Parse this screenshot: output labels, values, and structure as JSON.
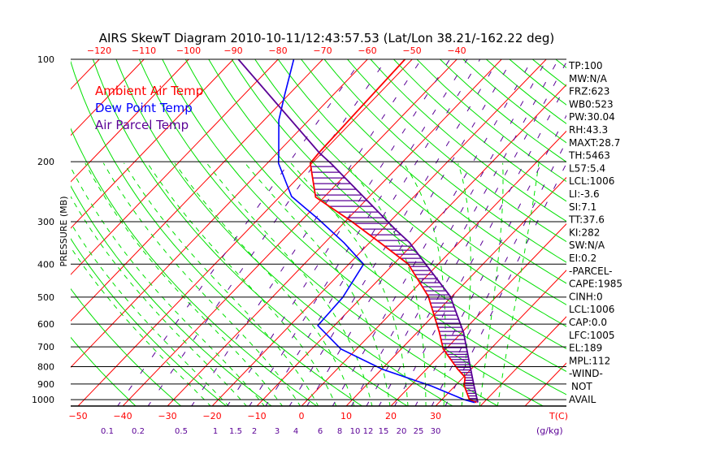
{
  "chart_data": {
    "type": "line",
    "title": "AIRS SkewT Diagram 2010-10-11/12:43:57.53 (Lat/Lon 38.21/-162.22 deg)",
    "ylabel": "PRESSURE (MB)",
    "xlabel": "T(C)",
    "mixing_ratio_unit": "(g/kg)",
    "y_scale": "log-pressure",
    "ylim": [
      1045,
      100
    ],
    "pressure_ticks": [
      100,
      200,
      300,
      400,
      500,
      600,
      700,
      800,
      900,
      1000
    ],
    "bottom_temp_ticks": [
      -50,
      -40,
      -30,
      -20,
      -10,
      0,
      10,
      20,
      30
    ],
    "top_temp_ticks": [
      -120,
      -110,
      -100,
      -90,
      -80,
      -70,
      -60,
      -50,
      -40
    ],
    "mixing_ratio_ticks": [
      "0.1",
      "0.2",
      "0.5",
      "1",
      "1.5",
      "2",
      "3",
      "4",
      "6",
      "8",
      "10",
      "12",
      "15",
      "20",
      "25",
      "30"
    ],
    "legend": [
      {
        "label": "Ambient Air Temp",
        "color": "#ff0000"
      },
      {
        "label": "Dew Point Temp",
        "color": "#0000ff"
      },
      {
        "label": "Air Parcel Temp",
        "color": "#5a0096"
      }
    ],
    "series": [
      {
        "name": "Ambient Air Temp",
        "color": "#ff0000",
        "points": [
          [
            100,
            -51.6
          ],
          [
            188,
            -50.7
          ],
          [
            202,
            -50.4
          ],
          [
            254,
            -41.9
          ],
          [
            300,
            -28.5
          ],
          [
            346,
            -17.6
          ],
          [
            400,
            -6.7
          ],
          [
            497,
            4.7
          ],
          [
            635,
            15.0
          ],
          [
            710,
            19.4
          ],
          [
            814,
            27.0
          ],
          [
            860,
            30.4
          ],
          [
            910,
            32.0
          ],
          [
            1000,
            36.2
          ],
          [
            1020,
            38.4
          ]
        ]
      },
      {
        "name": "Dew Point Temp",
        "color": "#0000ff",
        "points": [
          [
            100,
            -76.5
          ],
          [
            127,
            -70.9
          ],
          [
            151,
            -66.7
          ],
          [
            190,
            -59.4
          ],
          [
            202,
            -57.5
          ],
          [
            253,
            -47.4
          ],
          [
            295,
            -36.5
          ],
          [
            346,
            -25.7
          ],
          [
            400,
            -16.7
          ],
          [
            501,
            -14.2
          ],
          [
            606,
            -13.7
          ],
          [
            710,
            -3.5
          ],
          [
            814,
            10.1
          ],
          [
            912,
            24.7
          ],
          [
            1000,
            35.0
          ],
          [
            1020,
            38.0
          ]
        ]
      },
      {
        "name": "Air Parcel Temp",
        "color": "#5a0096",
        "points": [
          [
            100,
            -88.9
          ],
          [
            188,
            -50.7
          ],
          [
            203,
            -45.5
          ],
          [
            317,
            -16.9
          ],
          [
            346,
            -11.0
          ],
          [
            400,
            -2.8
          ],
          [
            497,
            9.6
          ],
          [
            635,
            20.4
          ],
          [
            814,
            29.9
          ],
          [
            910,
            34.2
          ],
          [
            1020,
            38.7
          ]
        ]
      }
    ],
    "grid": "isobars, isotherms, dry adiabats, moist adiabats, mixing ratio lines"
  },
  "indices": [
    "TP:100",
    "MW:N/A",
    "FRZ:623",
    "WB0:523",
    "PW:30.04",
    "RH:43.3",
    "MAXT:28.7",
    "TH:5463",
    "L57:5.4",
    "LCL:1006",
    "LI:-3.6",
    "SI:7.1",
    "TT:37.6",
    "KI:282",
    "SW:N/A",
    "EI:0.2",
    "-PARCEL-",
    "CAPE:1985",
    "CINH:0",
    "LCL:1006",
    "CAP:0.0",
    "LFC:1005",
    "EL:189",
    "MPL:112",
    "-WIND-",
    "NOT",
    "AVAIL"
  ],
  "colors": {
    "isotherm": "#ff0000",
    "dry_adiabat": "#00e000",
    "moist_adiabat": "#00e000",
    "mixing_ratio": "#5a0096",
    "dewpoint": "#0000ff",
    "parcel": "#5a0096"
  }
}
